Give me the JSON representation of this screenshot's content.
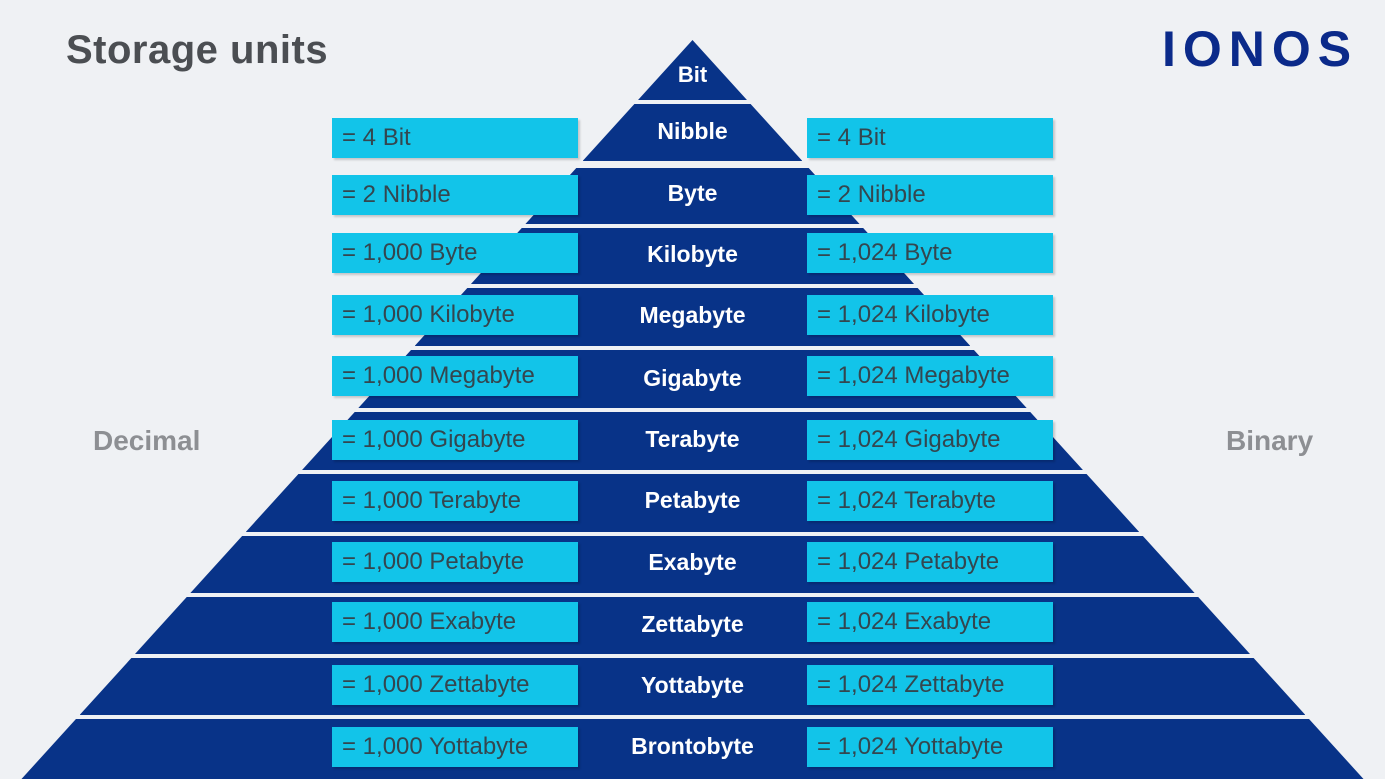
{
  "title": "Storage units",
  "logo": "IONOS",
  "labels": {
    "decimal": "Decimal",
    "binary": "Binary"
  },
  "colors": {
    "pyramid": "#083388",
    "box": "#12c4e9",
    "title": "#4b4e52",
    "logo": "#0b2a8a",
    "label": "#8d8f93",
    "background": "#eff1f4"
  },
  "tiers": [
    {
      "unit": "Bit"
    },
    {
      "unit": "Nibble",
      "decimal": "= 4 Bit",
      "binary": "= 4 Bit"
    },
    {
      "unit": "Byte",
      "decimal": "= 2 Nibble",
      "binary": "= 2 Nibble"
    },
    {
      "unit": "Kilobyte",
      "decimal": "= 1,000 Byte",
      "binary": "= 1,024 Byte"
    },
    {
      "unit": "Megabyte",
      "decimal": "= 1,000 Kilobyte",
      "binary": "= 1,024 Kilobyte"
    },
    {
      "unit": "Gigabyte",
      "decimal": "= 1,000 Megabyte",
      "binary": "= 1,024 Megabyte"
    },
    {
      "unit": "Terabyte",
      "decimal": "= 1,000 Gigabyte",
      "binary": "= 1,024 Gigabyte"
    },
    {
      "unit": "Petabyte",
      "decimal": "= 1,000 Terabyte",
      "binary": "= 1,024 Terabyte"
    },
    {
      "unit": "Exabyte",
      "decimal": "= 1,000 Petabyte",
      "binary": "= 1,024 Petabyte"
    },
    {
      "unit": "Zettabyte",
      "decimal": "= 1,000 Exabyte",
      "binary": "= 1,024 Exabyte"
    },
    {
      "unit": "Yottabyte",
      "decimal": "= 1,000 Zettabyte",
      "binary": "= 1,024 Zettabyte"
    },
    {
      "unit": "Brontobyte",
      "decimal": "= 1,000 Yottabyte",
      "binary": "= 1,024 Yottabyte"
    }
  ]
}
